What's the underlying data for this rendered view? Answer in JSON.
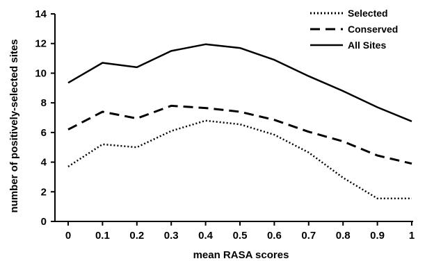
{
  "chart_data": {
    "type": "line",
    "title": "",
    "xlabel": "mean RASA scores",
    "ylabel": "number of positively-selected sites",
    "x": [
      0,
      0.1,
      0.2,
      0.3,
      0.4,
      0.5,
      0.6,
      0.7,
      0.8,
      0.9,
      1
    ],
    "x_tick_labels": [
      "0",
      "0.1",
      "0.2",
      "0.3",
      "0.4",
      "0.5",
      "0.6",
      "0.7",
      "0.8",
      "0.9",
      "1"
    ],
    "y_ticks": [
      0,
      2,
      4,
      6,
      8,
      10,
      12,
      14
    ],
    "ylim": [
      0,
      14
    ],
    "grid": false,
    "legend_position": "top-right",
    "series": [
      {
        "name": "Selected",
        "style": "dotted",
        "color": "#000000",
        "values": [
          3.7,
          5.2,
          5.0,
          6.1,
          6.8,
          6.55,
          5.85,
          4.65,
          2.95,
          1.55,
          1.55
        ]
      },
      {
        "name": "Conserved",
        "style": "dashed",
        "color": "#000000",
        "values": [
          6.2,
          7.4,
          6.95,
          7.8,
          7.65,
          7.4,
          6.85,
          6.05,
          5.4,
          4.45,
          3.9
        ]
      },
      {
        "name": "All Sites",
        "style": "solid",
        "color": "#000000",
        "values": [
          9.35,
          10.7,
          10.4,
          11.5,
          11.95,
          11.7,
          10.9,
          9.8,
          8.8,
          7.7,
          6.75
        ]
      }
    ]
  }
}
